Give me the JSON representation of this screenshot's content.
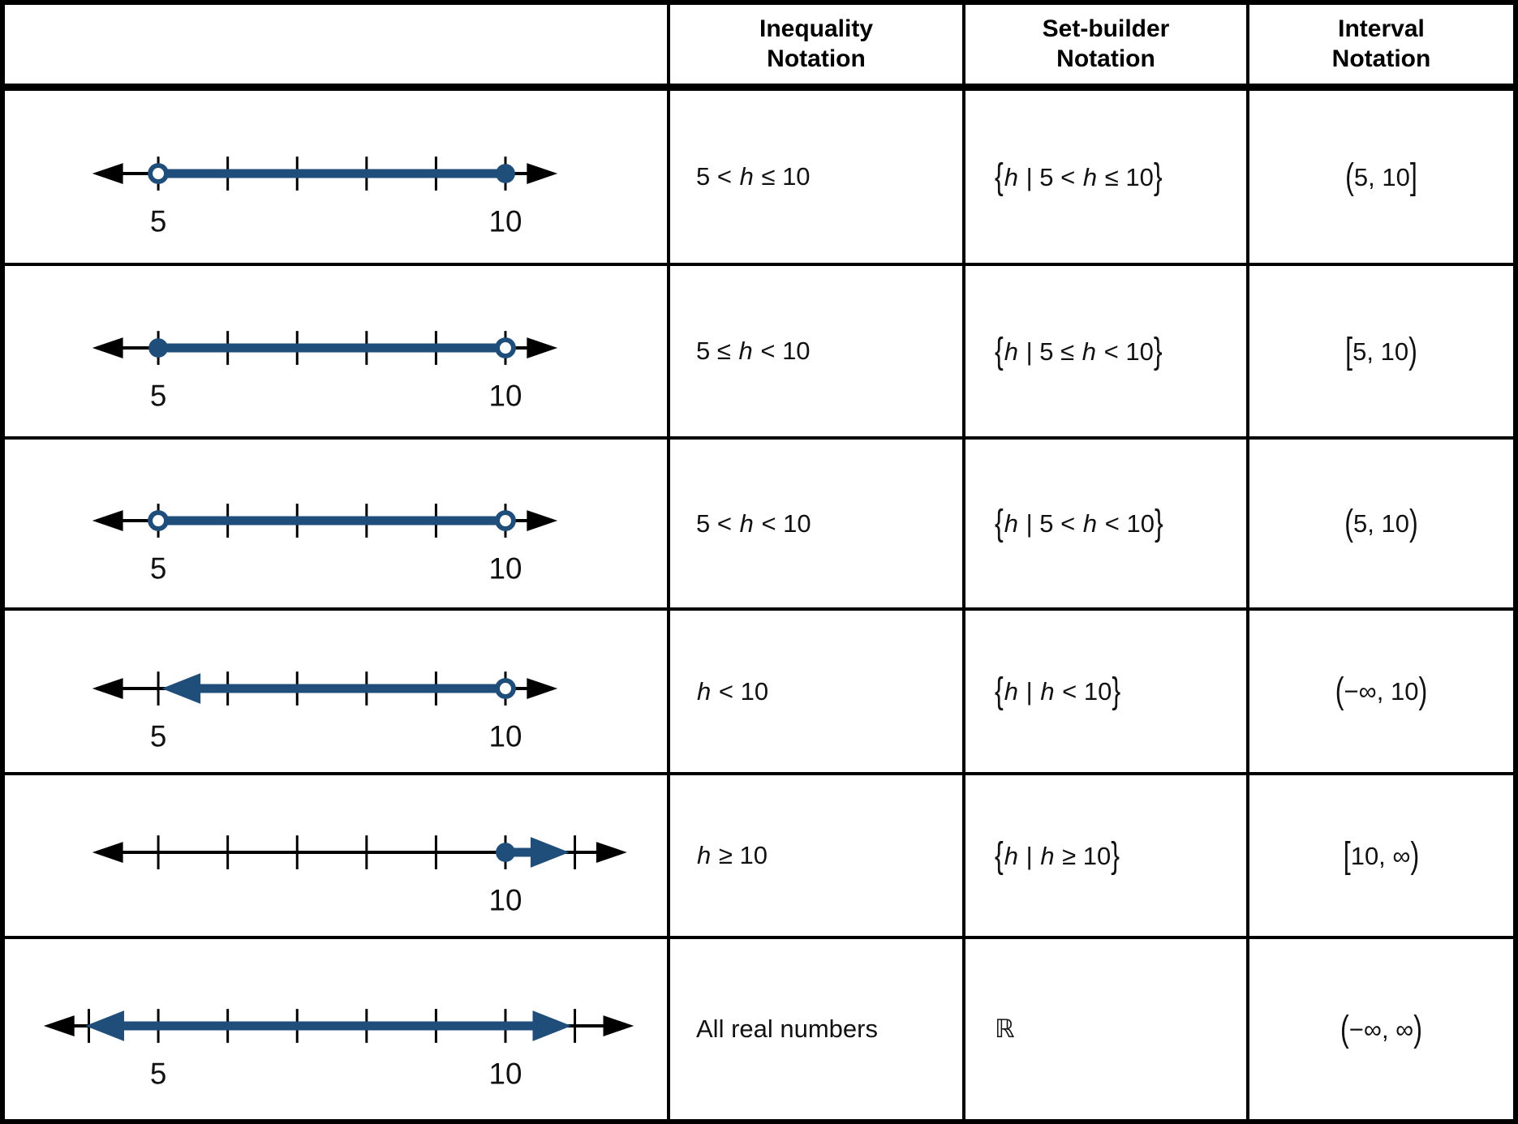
{
  "colors": {
    "shade_blue": "#1f4e7a",
    "axis_black": "#000000",
    "border_black": "#000000",
    "background": "#ffffff"
  },
  "header": {
    "columns": [
      "",
      "Inequality\nNotation",
      "Set-builder\nNotation",
      "Interval\nNotation"
    ]
  },
  "rows": [
    {
      "numberline": {
        "ticks": [
          5,
          6,
          7,
          8,
          9,
          10
        ],
        "labels": [
          {
            "value": 5,
            "text": "5"
          },
          {
            "value": 10,
            "text": "10"
          }
        ],
        "axis": {
          "from": 4.05,
          "to": 10.75
        },
        "shade": {
          "from": {
            "value": 5,
            "style": "open"
          },
          "to": {
            "value": 10,
            "style": "closed"
          }
        }
      },
      "inequality": "5 < *h* ≤ 10",
      "set_builder": "{*h* | 5 < *h* ≤ 10}",
      "interval": "(5, 10]"
    },
    {
      "numberline": {
        "ticks": [
          5,
          6,
          7,
          8,
          9,
          10
        ],
        "labels": [
          {
            "value": 5,
            "text": "5"
          },
          {
            "value": 10,
            "text": "10"
          }
        ],
        "axis": {
          "from": 4.05,
          "to": 10.75
        },
        "shade": {
          "from": {
            "value": 5,
            "style": "closed"
          },
          "to": {
            "value": 10,
            "style": "open"
          }
        }
      },
      "inequality": "5 ≤ *h* < 10",
      "set_builder": "{*h* | 5 ≤ *h* < 10}",
      "interval": "[5, 10)"
    },
    {
      "numberline": {
        "ticks": [
          5,
          6,
          7,
          8,
          9,
          10
        ],
        "labels": [
          {
            "value": 5,
            "text": "5"
          },
          {
            "value": 10,
            "text": "10"
          }
        ],
        "axis": {
          "from": 4.05,
          "to": 10.75
        },
        "shade": {
          "from": {
            "value": 5,
            "style": "open"
          },
          "to": {
            "value": 10,
            "style": "open"
          }
        }
      },
      "inequality": "5 < *h* < 10",
      "set_builder": "{*h* | 5 < *h* < 10}",
      "interval": "(5, 10)"
    },
    {
      "numberline": {
        "ticks": [
          5,
          6,
          7,
          8,
          9,
          10
        ],
        "labels": [
          {
            "value": 5,
            "text": "5"
          },
          {
            "value": 10,
            "text": "10"
          }
        ],
        "axis": {
          "from": 4.05,
          "to": 10.75
        },
        "shade": {
          "from": {
            "value": 5.05,
            "style": "arrow"
          },
          "to": {
            "value": 10,
            "style": "open"
          }
        }
      },
      "inequality": "*h* < 10",
      "set_builder": "{*h* | *h* < 10}",
      "interval": "(−∞, 10)"
    },
    {
      "numberline": {
        "ticks": [
          5,
          6,
          7,
          8,
          9,
          10,
          11
        ],
        "labels": [
          {
            "value": 10,
            "text": "10"
          }
        ],
        "axis": {
          "from": 4.05,
          "to": 11.75
        },
        "shade": {
          "from": {
            "value": 10,
            "style": "closed"
          },
          "to": {
            "value": 10.92,
            "style": "arrow"
          }
        }
      },
      "inequality": "*h* ≥ 10",
      "set_builder": "{*h* | *h* ≥ 10}",
      "interval": "[10, ∞)"
    },
    {
      "numberline": {
        "ticks": [
          4,
          5,
          6,
          7,
          8,
          9,
          10,
          11
        ],
        "labels": [
          {
            "value": 5,
            "text": "5"
          },
          {
            "value": 10,
            "text": "10"
          }
        ],
        "axis": {
          "from": 3.35,
          "to": 11.85
        },
        "shade": {
          "from": {
            "value": 3.95,
            "style": "arrow"
          },
          "to": {
            "value": 10.95,
            "style": "arrow"
          }
        }
      },
      "inequality": "All real numbers",
      "set_builder": "ℝ",
      "interval": "(−∞, ∞)"
    }
  ]
}
